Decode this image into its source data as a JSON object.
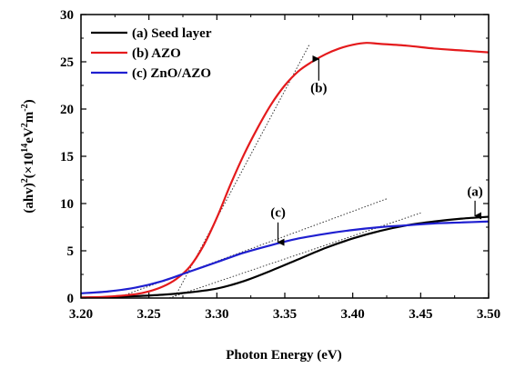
{
  "chart_data": {
    "type": "line",
    "xlabel": "Photon Energy (eV)",
    "ylabel_parts": [
      "(ahv)",
      "2",
      "(×10",
      "14",
      "eV",
      "2",
      "m",
      "-2",
      ")"
    ],
    "xlim": [
      3.2,
      3.5
    ],
    "ylim": [
      0,
      30
    ],
    "x_ticks": [
      "3.20",
      "3.25",
      "3.30",
      "3.35",
      "3.40",
      "3.45",
      "3.50"
    ],
    "y_ticks": [
      "0",
      "5",
      "10",
      "15",
      "20",
      "25",
      "30"
    ],
    "legend_position": "top-left",
    "series": [
      {
        "name": "(a) Seed layer",
        "color": "#000000",
        "x": [
          3.2,
          3.22,
          3.24,
          3.26,
          3.28,
          3.3,
          3.32,
          3.34,
          3.36,
          3.38,
          3.4,
          3.42,
          3.44,
          3.46,
          3.48,
          3.5
        ],
        "y": [
          0.05,
          0.1,
          0.2,
          0.35,
          0.6,
          1.0,
          1.8,
          2.9,
          4.1,
          5.3,
          6.3,
          7.1,
          7.7,
          8.1,
          8.4,
          8.6
        ]
      },
      {
        "name": "(b) AZO",
        "color": "#e41a1c",
        "x": [
          3.2,
          3.22,
          3.24,
          3.25,
          3.26,
          3.27,
          3.28,
          3.29,
          3.3,
          3.31,
          3.32,
          3.33,
          3.34,
          3.35,
          3.36,
          3.37,
          3.38,
          3.39,
          3.4,
          3.41,
          3.42,
          3.44,
          3.46,
          3.48,
          3.5
        ],
        "y": [
          0.05,
          0.15,
          0.4,
          0.7,
          1.2,
          2.0,
          3.3,
          5.5,
          8.5,
          12.0,
          15.2,
          18.0,
          20.5,
          22.5,
          24.0,
          25.0,
          25.8,
          26.4,
          26.8,
          27.0,
          26.9,
          26.7,
          26.4,
          26.2,
          26.0
        ]
      },
      {
        "name": "(c) ZnO/AZO",
        "color": "#1f1fd0",
        "x": [
          3.2,
          3.22,
          3.24,
          3.26,
          3.28,
          3.3,
          3.32,
          3.34,
          3.36,
          3.38,
          3.4,
          3.42,
          3.44,
          3.46,
          3.48,
          3.5
        ],
        "y": [
          0.5,
          0.7,
          1.1,
          1.8,
          2.8,
          3.8,
          4.8,
          5.6,
          6.3,
          6.8,
          7.2,
          7.5,
          7.7,
          7.9,
          8.0,
          8.1
        ]
      }
    ],
    "tangent_lines": [
      {
        "series": "(a) Seed layer",
        "x": [
          3.265,
          3.45
        ],
        "y": [
          0,
          9.0
        ]
      },
      {
        "series": "(b) AZO",
        "x": [
          3.265,
          3.368
        ],
        "y": [
          -1,
          26.8
        ]
      },
      {
        "series": "(c) ZnO/AZO",
        "x": [
          3.215,
          3.425
        ],
        "y": [
          -0.6,
          10.5
        ]
      }
    ],
    "annotations": [
      {
        "label": "(a)",
        "text_x": 3.49,
        "text_y": 10.8,
        "arrow_from": [
          3.49,
          10.3
        ],
        "arrow_to": [
          3.49,
          8.7
        ]
      },
      {
        "label": "(b)",
        "text_x": 3.375,
        "text_y": 21.8,
        "arrow_from": [
          3.375,
          23.0
        ],
        "arrow_to": [
          3.375,
          25.3
        ]
      },
      {
        "label": "(c)",
        "text_x": 3.345,
        "text_y": 8.6,
        "arrow_from": [
          3.345,
          8.0
        ],
        "arrow_to": [
          3.345,
          5.9
        ]
      }
    ]
  }
}
